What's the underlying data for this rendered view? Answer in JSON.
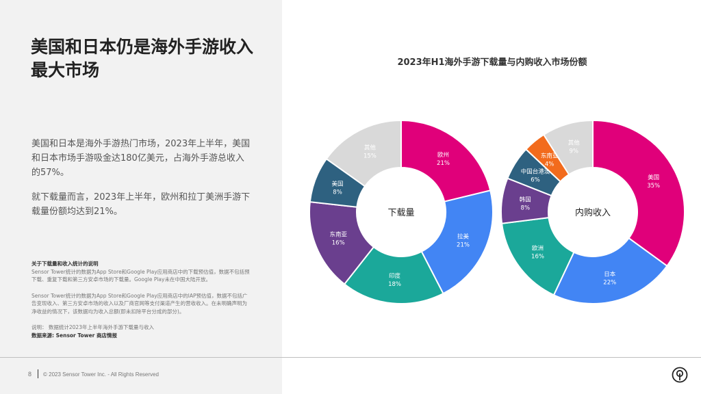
{
  "page": {
    "title": "美国和日本仍是海外手游收入最大市场",
    "paragraph1": "美国和日本是海外手游热门市场，2023年上半年，美国和日本市场手游吸金达180亿美元，占海外手游总收入的57%。",
    "paragraph2": "就下载量而言，2023年上半年，欧州和拉丁美洲手游下载量份额均达到21%。",
    "notes": {
      "heading": "关于下载量和收入统计的说明",
      "note1": "Sensor Tower统计的数据为App Store和Google Play应用商店中的下载预估值，数据不包括预下载、重复下载和第三方安卓市场的下载量。Google Play未在中国大陆开放。",
      "note2": "Sensor Tower统计的数据为App Store和Google Play应用商店中的IAP预估值，数据不包括广告变现收入、第三方安卓市场的收入以及厂商官网等支付渠道产生的营收收入。在未明确声明为净收益的情况下，该数据均为收入总额(即未扣除平台分成的部分)。",
      "explanation": "说明：  数据统计2023年上半年海外手游下载量与收入",
      "source": "数据来源: Sensor Tower 商店情报"
    },
    "footer": {
      "page_number": "8",
      "copyright": "© 2023 Sensor Tower Inc. - All Rights Reserved"
    }
  },
  "chart_data": [
    {
      "type": "pie",
      "donut": true,
      "title": "2023年H1海外手游下载量与内购收入市场份额",
      "center_label": "下载量",
      "slices": [
        {
          "label": "欧州",
          "value": 21,
          "display": "21%",
          "color": "#e0007a"
        },
        {
          "label": "拉美",
          "value": 21,
          "display": "21%",
          "color": "#4285f4"
        },
        {
          "label": "印度",
          "value": 18,
          "display": "18%",
          "color": "#1ba89a"
        },
        {
          "label": "东南亚",
          "value": 16,
          "display": "16%",
          "color": "#6a3f8e"
        },
        {
          "label": "美国",
          "value": 8,
          "display": "8%",
          "color": "#2e6180"
        },
        {
          "label": "其他",
          "value": 15,
          "display": "15%",
          "color": "#d9d9d9"
        }
      ]
    },
    {
      "type": "pie",
      "donut": true,
      "title": "2023年H1海外手游下载量与内购收入市场份额",
      "center_label": "内购收入",
      "slices": [
        {
          "label": "美国",
          "value": 35,
          "display": "35%",
          "color": "#e0007a"
        },
        {
          "label": "日本",
          "value": 22,
          "display": "22%",
          "color": "#4285f4"
        },
        {
          "label": "欧洲",
          "value": 16,
          "display": "16%",
          "color": "#1ba89a"
        },
        {
          "label": "韩国",
          "value": 8,
          "display": "8%",
          "color": "#6a3f8e"
        },
        {
          "label": "中国台港澳",
          "value": 6,
          "display": "6%",
          "color": "#2e6180"
        },
        {
          "label": "东南亚",
          "value": 4,
          "display": "4%",
          "color": "#f26b1d"
        },
        {
          "label": "其他",
          "value": 9,
          "display": "9%",
          "color": "#d9d9d9"
        }
      ]
    }
  ]
}
